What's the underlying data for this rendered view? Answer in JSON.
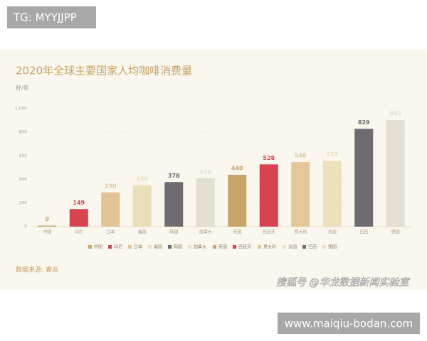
{
  "chart_data": {
    "type": "bar",
    "title": "2020年全球主要国家人均咖啡消费量",
    "y_label": "杯/年",
    "categories": [
      "中国",
      "印尼",
      "日本",
      "美国",
      "韩国",
      "加拿大",
      "英国",
      "西班牙",
      "意大利",
      "法国",
      "巴西",
      "德国"
    ],
    "values": [
      9,
      149,
      290,
      350,
      378,
      410,
      440,
      528,
      548,
      557,
      829,
      903
    ],
    "colors": [
      "#c9a86c",
      "#d9434f",
      "#e2c597",
      "#ebdfb9",
      "#6e6b71",
      "#e3e0d2",
      "#c8a66a",
      "#d9434f",
      "#e2c898",
      "#ede1bc",
      "#6e6b71",
      "#e4e1d4"
    ],
    "ylim": [
      0,
      1000
    ],
    "yticks": [
      0,
      200,
      400,
      600,
      800,
      {
        "value": 1000,
        "label": "1,000"
      }
    ],
    "grid": true,
    "legend": "bottom",
    "source": "数据来源: 睿派"
  },
  "overlay": {
    "top_label": "TG: MYYJJPP",
    "watermark": "搜狐号 @华龙数据新闻实验室",
    "site": "www.maiqiu-bodan.com"
  }
}
